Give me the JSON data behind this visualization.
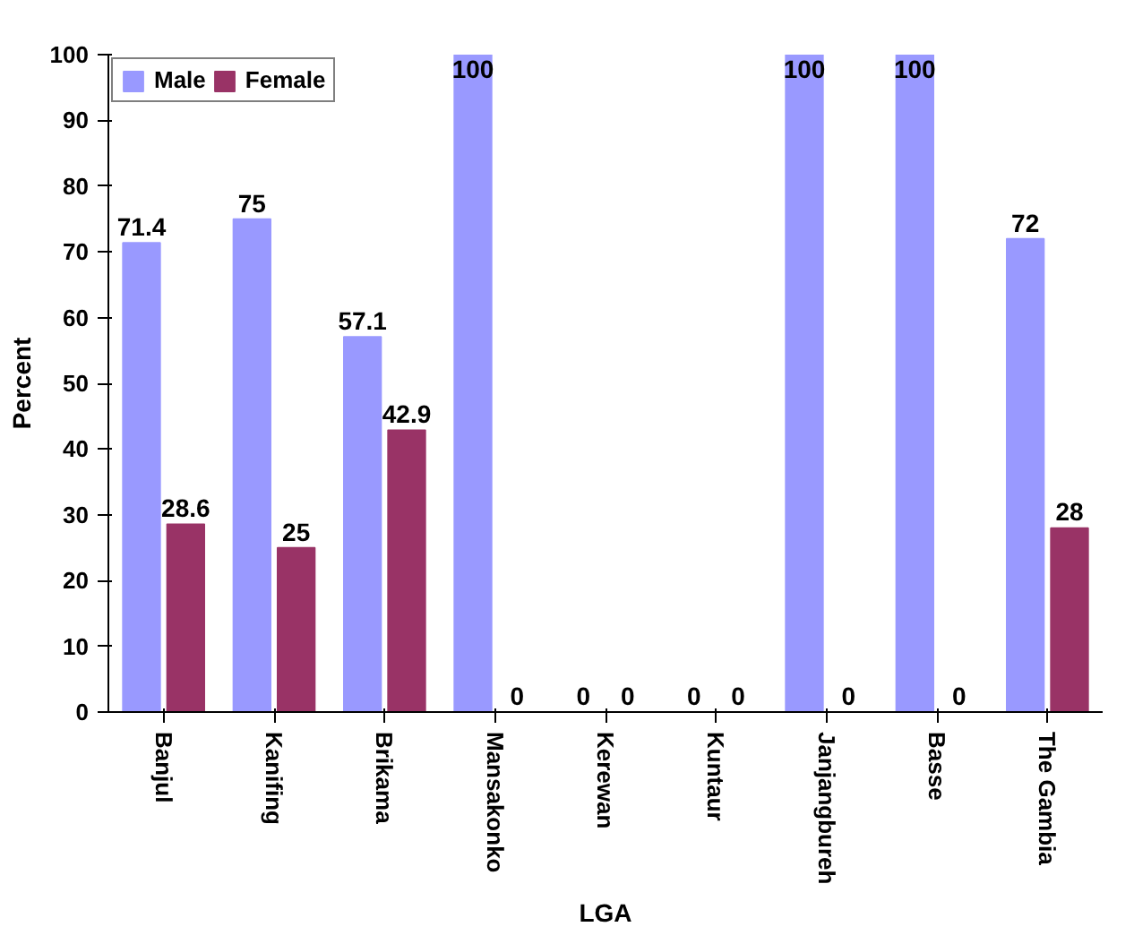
{
  "chart_data": {
    "type": "bar",
    "xlabel": "LGA",
    "ylabel": "Percent",
    "categories": [
      "Banjul",
      "Kanifing",
      "Brikama",
      "Mansakonko",
      "Kerewan",
      "Kuntaur",
      "Janjangbureh",
      "Basse",
      "The Gambia"
    ],
    "series": [
      {
        "name": "Male",
        "color": "#9999ff",
        "values": [
          71.4,
          75,
          57.1,
          100,
          0,
          0,
          100,
          100,
          72
        ]
      },
      {
        "name": "Female",
        "color": "#993366",
        "values": [
          28.6,
          25,
          42.9,
          0,
          0,
          0,
          0,
          0,
          28
        ]
      }
    ],
    "ylim": [
      0,
      100
    ],
    "yticks": [
      0,
      10,
      20,
      30,
      40,
      50,
      60,
      70,
      80,
      90,
      100
    ],
    "data_labels": true,
    "legend": "top left",
    "grid": false
  }
}
